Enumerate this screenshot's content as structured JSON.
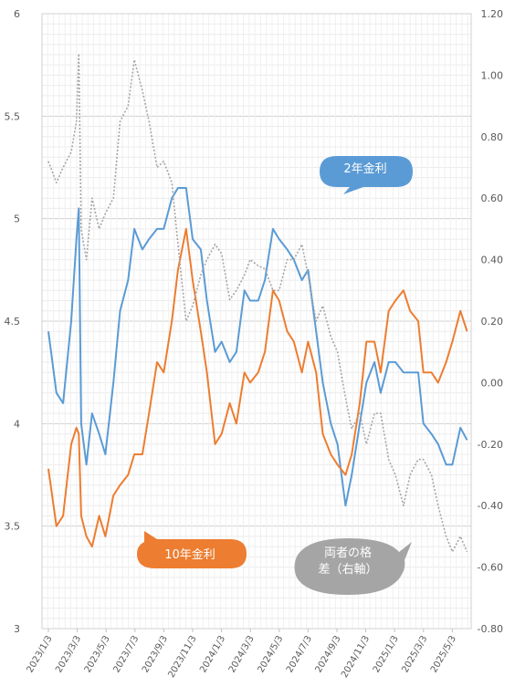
{
  "chart_data": {
    "type": "line",
    "title": "",
    "xlabel": "",
    "ylabel": "",
    "y_left": {
      "min": 3,
      "max": 6,
      "ticks": [
        "3",
        "3.5",
        "4",
        "4.5",
        "5",
        "5.5",
        "6"
      ]
    },
    "y_right": {
      "min": -0.8,
      "max": 1.2,
      "ticks": [
        "-0.80",
        "-0.60",
        "-0.40",
        "-0.20",
        "0.00",
        "0.20",
        "0.40",
        "0.60",
        "0.80",
        "1.00",
        "1.20"
      ]
    },
    "x_tick_labels": [
      "2023/1/3",
      "2023/3/3",
      "2023/5/3",
      "2023/7/3",
      "2023/9/3",
      "2023/11/3",
      "2024/1/3",
      "2024/3/3",
      "2024/5/3",
      "2024/7/3",
      "2024/9/3",
      "2024/11/3",
      "2025/1/3",
      "2025/3/3",
      "2025/5/3"
    ],
    "grid": true,
    "series": [
      {
        "name": "2年金利",
        "axis": "left",
        "color": "#5B9BD5",
        "style": "solid",
        "points": [
          [
            "2023/1/3",
            4.45
          ],
          [
            "2023/1/20",
            4.15
          ],
          [
            "2023/2/3",
            4.1
          ],
          [
            "2023/2/20",
            4.5
          ],
          [
            "2023/3/3",
            4.9
          ],
          [
            "2023/3/8",
            5.05
          ],
          [
            "2023/3/13",
            4.0
          ],
          [
            "2023/3/24",
            3.8
          ],
          [
            "2023/4/5",
            4.05
          ],
          [
            "2023/4/20",
            3.95
          ],
          [
            "2023/5/3",
            3.85
          ],
          [
            "2023/5/20",
            4.2
          ],
          [
            "2023/6/3",
            4.55
          ],
          [
            "2023/6/20",
            4.7
          ],
          [
            "2023/7/3",
            4.95
          ],
          [
            "2023/7/20",
            4.85
          ],
          [
            "2023/8/3",
            4.9
          ],
          [
            "2023/8/20",
            4.95
          ],
          [
            "2023/9/3",
            4.95
          ],
          [
            "2023/9/20",
            5.1
          ],
          [
            "2023/10/3",
            5.15
          ],
          [
            "2023/10/20",
            5.15
          ],
          [
            "2023/11/3",
            4.9
          ],
          [
            "2023/11/20",
            4.85
          ],
          [
            "2023/12/3",
            4.6
          ],
          [
            "2023/12/20",
            4.35
          ],
          [
            "2024/1/3",
            4.4
          ],
          [
            "2024/1/20",
            4.3
          ],
          [
            "2024/2/3",
            4.35
          ],
          [
            "2024/2/20",
            4.65
          ],
          [
            "2024/3/3",
            4.6
          ],
          [
            "2024/3/20",
            4.6
          ],
          [
            "2024/4/3",
            4.7
          ],
          [
            "2024/4/20",
            4.95
          ],
          [
            "2024/5/3",
            4.9
          ],
          [
            "2024/5/20",
            4.85
          ],
          [
            "2024/6/3",
            4.8
          ],
          [
            "2024/6/20",
            4.7
          ],
          [
            "2024/7/3",
            4.75
          ],
          [
            "2024/7/20",
            4.45
          ],
          [
            "2024/8/3",
            4.2
          ],
          [
            "2024/8/20",
            4.0
          ],
          [
            "2024/9/3",
            3.9
          ],
          [
            "2024/9/20",
            3.6
          ],
          [
            "2024/10/3",
            3.75
          ],
          [
            "2024/10/20",
            4.0
          ],
          [
            "2024/11/3",
            4.2
          ],
          [
            "2024/11/20",
            4.3
          ],
          [
            "2024/12/3",
            4.15
          ],
          [
            "2024/12/20",
            4.3
          ],
          [
            "2025/1/3",
            4.3
          ],
          [
            "2025/1/20",
            4.25
          ],
          [
            "2025/2/3",
            4.25
          ],
          [
            "2025/2/20",
            4.25
          ],
          [
            "2025/3/3",
            4.0
          ],
          [
            "2025/3/20",
            3.95
          ],
          [
            "2025/4/3",
            3.9
          ],
          [
            "2025/4/20",
            3.8
          ],
          [
            "2025/5/3",
            3.8
          ],
          [
            "2025/5/20",
            3.98
          ],
          [
            "2025/6/3",
            3.92
          ]
        ]
      },
      {
        "name": "10年金利",
        "axis": "left",
        "color": "#ED7D31",
        "style": "solid",
        "points": [
          [
            "2023/1/3",
            3.78
          ],
          [
            "2023/1/20",
            3.5
          ],
          [
            "2023/2/3",
            3.55
          ],
          [
            "2023/2/20",
            3.9
          ],
          [
            "2023/3/3",
            3.98
          ],
          [
            "2023/3/8",
            3.95
          ],
          [
            "2023/3/13",
            3.55
          ],
          [
            "2023/3/24",
            3.45
          ],
          [
            "2023/4/5",
            3.4
          ],
          [
            "2023/4/20",
            3.55
          ],
          [
            "2023/5/3",
            3.45
          ],
          [
            "2023/5/20",
            3.65
          ],
          [
            "2023/6/3",
            3.7
          ],
          [
            "2023/6/20",
            3.75
          ],
          [
            "2023/7/3",
            3.85
          ],
          [
            "2023/7/20",
            3.85
          ],
          [
            "2023/8/3",
            4.05
          ],
          [
            "2023/8/20",
            4.3
          ],
          [
            "2023/9/3",
            4.25
          ],
          [
            "2023/9/20",
            4.5
          ],
          [
            "2023/10/3",
            4.75
          ],
          [
            "2023/10/20",
            4.95
          ],
          [
            "2023/11/3",
            4.7
          ],
          [
            "2023/11/20",
            4.45
          ],
          [
            "2023/12/3",
            4.25
          ],
          [
            "2023/12/20",
            3.9
          ],
          [
            "2024/1/3",
            3.95
          ],
          [
            "2024/1/20",
            4.1
          ],
          [
            "2024/2/3",
            4.0
          ],
          [
            "2024/2/20",
            4.25
          ],
          [
            "2024/3/3",
            4.2
          ],
          [
            "2024/3/20",
            4.25
          ],
          [
            "2024/4/3",
            4.35
          ],
          [
            "2024/4/20",
            4.65
          ],
          [
            "2024/5/3",
            4.6
          ],
          [
            "2024/5/20",
            4.45
          ],
          [
            "2024/6/3",
            4.4
          ],
          [
            "2024/6/20",
            4.25
          ],
          [
            "2024/7/3",
            4.4
          ],
          [
            "2024/7/20",
            4.25
          ],
          [
            "2024/8/3",
            3.95
          ],
          [
            "2024/8/20",
            3.85
          ],
          [
            "2024/9/3",
            3.8
          ],
          [
            "2024/9/20",
            3.75
          ],
          [
            "2024/10/3",
            3.85
          ],
          [
            "2024/10/20",
            4.1
          ],
          [
            "2024/11/3",
            4.4
          ],
          [
            "2024/11/20",
            4.4
          ],
          [
            "2024/12/3",
            4.25
          ],
          [
            "2024/12/20",
            4.55
          ],
          [
            "2025/1/3",
            4.6
          ],
          [
            "2025/1/20",
            4.65
          ],
          [
            "2025/2/3",
            4.55
          ],
          [
            "2025/2/20",
            4.5
          ],
          [
            "2025/3/3",
            4.25
          ],
          [
            "2025/3/20",
            4.25
          ],
          [
            "2025/4/3",
            4.2
          ],
          [
            "2025/4/20",
            4.3
          ],
          [
            "2025/5/3",
            4.4
          ],
          [
            "2025/5/20",
            4.55
          ],
          [
            "2025/6/3",
            4.45
          ]
        ]
      },
      {
        "name": "両者の格差（右軸）",
        "axis": "right",
        "color": "#A5A5A5",
        "style": "dotted",
        "points": [
          [
            "2023/1/3",
            0.72
          ],
          [
            "2023/1/20",
            0.65
          ],
          [
            "2023/2/3",
            0.7
          ],
          [
            "2023/2/20",
            0.75
          ],
          [
            "2023/3/3",
            0.85
          ],
          [
            "2023/3/8",
            1.07
          ],
          [
            "2023/3/13",
            0.5
          ],
          [
            "2023/3/24",
            0.4
          ],
          [
            "2023/4/5",
            0.6
          ],
          [
            "2023/4/20",
            0.5
          ],
          [
            "2023/5/3",
            0.55
          ],
          [
            "2023/5/20",
            0.6
          ],
          [
            "2023/6/3",
            0.85
          ],
          [
            "2023/6/20",
            0.9
          ],
          [
            "2023/7/3",
            1.05
          ],
          [
            "2023/7/20",
            0.95
          ],
          [
            "2023/8/3",
            0.85
          ],
          [
            "2023/8/20",
            0.7
          ],
          [
            "2023/9/3",
            0.72
          ],
          [
            "2023/9/20",
            0.65
          ],
          [
            "2023/10/3",
            0.45
          ],
          [
            "2023/10/20",
            0.2
          ],
          [
            "2023/11/3",
            0.25
          ],
          [
            "2023/11/20",
            0.35
          ],
          [
            "2023/12/3",
            0.4
          ],
          [
            "2023/12/20",
            0.45
          ],
          [
            "2024/1/3",
            0.42
          ],
          [
            "2024/1/20",
            0.27
          ],
          [
            "2024/2/3",
            0.3
          ],
          [
            "2024/2/20",
            0.35
          ],
          [
            "2024/3/3",
            0.4
          ],
          [
            "2024/3/20",
            0.38
          ],
          [
            "2024/4/3",
            0.37
          ],
          [
            "2024/4/20",
            0.3
          ],
          [
            "2024/5/3",
            0.3
          ],
          [
            "2024/5/20",
            0.4
          ],
          [
            "2024/6/3",
            0.4
          ],
          [
            "2024/6/20",
            0.45
          ],
          [
            "2024/7/3",
            0.35
          ],
          [
            "2024/7/20",
            0.2
          ],
          [
            "2024/8/3",
            0.25
          ],
          [
            "2024/8/20",
            0.15
          ],
          [
            "2024/9/3",
            0.1
          ],
          [
            "2024/9/20",
            -0.05
          ],
          [
            "2024/10/3",
            -0.15
          ],
          [
            "2024/10/20",
            -0.1
          ],
          [
            "2024/11/3",
            -0.2
          ],
          [
            "2024/11/20",
            -0.1
          ],
          [
            "2024/12/3",
            -0.1
          ],
          [
            "2024/12/20",
            -0.25
          ],
          [
            "2025/1/3",
            -0.3
          ],
          [
            "2025/1/20",
            -0.4
          ],
          [
            "2025/2/3",
            -0.3
          ],
          [
            "2025/2/20",
            -0.25
          ],
          [
            "2025/3/3",
            -0.25
          ],
          [
            "2025/3/20",
            -0.3
          ],
          [
            "2025/4/3",
            -0.4
          ],
          [
            "2025/4/20",
            -0.5
          ],
          [
            "2025/5/3",
            -0.55
          ],
          [
            "2025/5/20",
            -0.5
          ],
          [
            "2025/6/3",
            -0.55
          ]
        ]
      }
    ],
    "callouts": [
      {
        "text": "2年金利",
        "series": "2年金利",
        "fill": "#5B9BD5",
        "text_color": "#ffffff"
      },
      {
        "text": "10年金利",
        "series": "10年金利",
        "fill": "#ED7D31",
        "text_color": "#ffffff"
      },
      {
        "text_lines": [
          "両者の格",
          "差（右軸）"
        ],
        "series": "両者の格差（右軸）",
        "fill": "#A5A5A5",
        "text_color": "#ffffff"
      }
    ]
  }
}
